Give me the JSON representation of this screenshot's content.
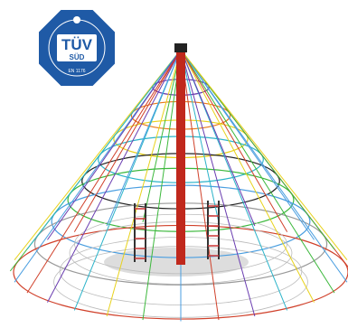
{
  "badge": {
    "brand": "TÜV",
    "division": "SÜD",
    "standard": "EN 1176"
  }
}
